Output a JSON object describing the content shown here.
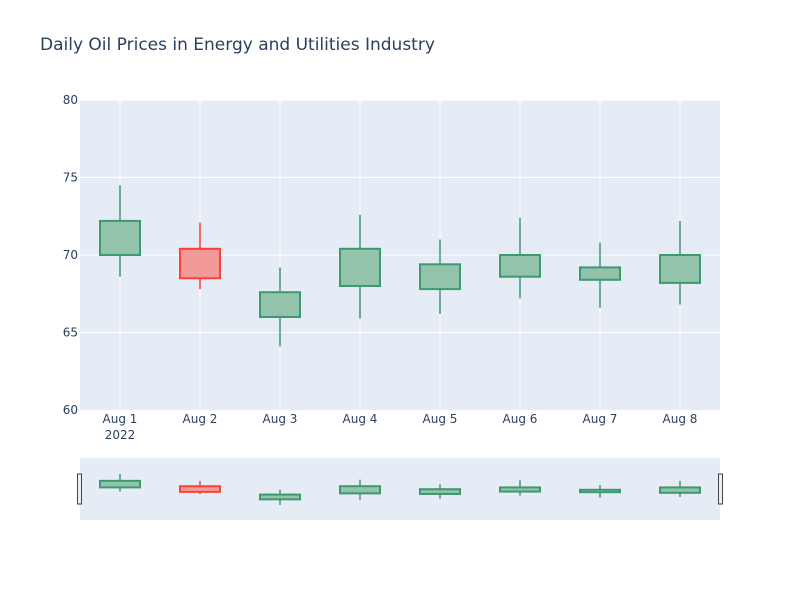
{
  "chart_data": {
    "type": "candlestick",
    "title": "Daily Oil Prices in Energy and Utilities Industry",
    "x_ticks": [
      "Aug 1",
      "Aug 2",
      "Aug 3",
      "Aug 4",
      "Aug 5",
      "Aug 6",
      "Aug 7",
      "Aug 8"
    ],
    "x_year_label": "2022",
    "dates": [
      "2022-08-01",
      "2022-08-02",
      "2022-08-03",
      "2022-08-04",
      "2022-08-05",
      "2022-08-06",
      "2022-08-07",
      "2022-08-08"
    ],
    "open": [
      70.0,
      70.4,
      66.0,
      68.0,
      67.8,
      68.6,
      68.4,
      68.2
    ],
    "high": [
      74.5,
      72.1,
      69.2,
      72.6,
      71.0,
      72.4,
      70.8,
      72.2
    ],
    "low": [
      68.6,
      67.8,
      64.1,
      65.9,
      66.2,
      67.2,
      66.6,
      66.8
    ],
    "close": [
      72.2,
      68.5,
      67.6,
      70.4,
      69.4,
      70.0,
      69.2,
      70.0
    ],
    "ylim": [
      60,
      80
    ],
    "y_ticks": [
      60,
      65,
      70,
      75,
      80
    ],
    "grid": true,
    "rangeslider": true,
    "colors": {
      "increasing_line": "#3d9970",
      "increasing_fill": "#93c3ab",
      "decreasing_line": "#ff4136",
      "decreasing_fill": "#f19a99",
      "plot_bg": "#e5ecf6",
      "grid": "#ffffff",
      "text": "#2a3f5f"
    }
  }
}
